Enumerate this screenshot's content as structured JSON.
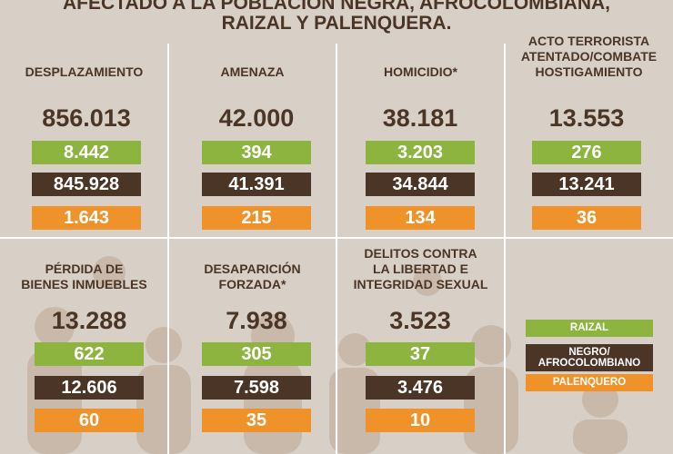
{
  "header": {
    "lines": [
      "AFECTADO A LA POBLACIÓN NEGRA, AFROCOLOMBIANA,",
      "RAIZAL Y PALENQUERA."
    ]
  },
  "cells": [
    {
      "title": [
        "DESPLAZAMIENTO"
      ],
      "total": "856.013",
      "raizal": "8.442",
      "negro": "845.928",
      "palenquero": "1.643"
    },
    {
      "title": [
        "AMENAZA"
      ],
      "total": "42.000",
      "raizal": "394",
      "negro": "41.391",
      "palenquero": "215"
    },
    {
      "title": [
        "HOMICIDIO*"
      ],
      "total": "38.181",
      "raizal": "3.203",
      "negro": "34.844",
      "palenquero": "134"
    },
    {
      "title": [
        "ACTO TERRORISTA",
        "ATENTADO/COMBATE",
        "HOSTIGAMIENTO"
      ],
      "total": "13.553",
      "raizal": "276",
      "negro": "13.241",
      "palenquero": "36"
    },
    {
      "title": [
        "PÉRDIDA DE",
        "BIENES INMUEBLES"
      ],
      "total": "13.288",
      "raizal": "622",
      "negro": "12.606",
      "palenquero": "60"
    },
    {
      "title": [
        "DESAPARICIÓN",
        "FORZADA*"
      ],
      "total": "7.938",
      "raizal": "305",
      "negro": "7.598",
      "palenquero": "35"
    },
    {
      "title": [
        "DELITOS CONTRA",
        "LA LIBERTAD E",
        "INTEGRIDAD SEXUAL"
      ],
      "total": "3.523",
      "raizal": "37",
      "negro": "3.476",
      "palenquero": "10"
    }
  ],
  "legend": {
    "raizal": [
      "RAIZAL"
    ],
    "negro": [
      "NEGRO/",
      "AFROCOLOMBIANO"
    ],
    "palenquero": [
      "PALENQUERO"
    ]
  }
}
